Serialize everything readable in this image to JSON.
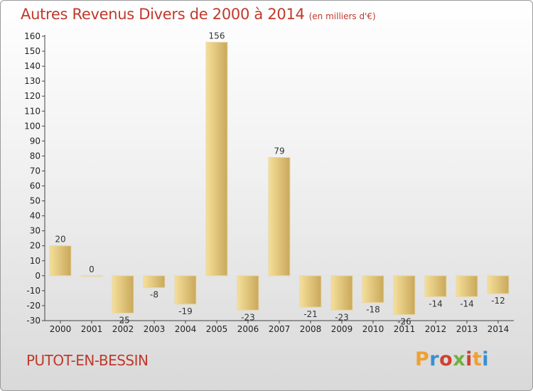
{
  "header": {
    "title": "Autres Revenus Divers de 2000 à 2014",
    "subtitle": "(en milliers d'€)"
  },
  "footer": {
    "city": "PUTOT-EN-BESSIN",
    "logo": {
      "letters": [
        "P",
        "r",
        "o",
        "x",
        "i",
        "t",
        "i"
      ],
      "colors": [
        "#f0a030",
        "#3a8fd0",
        "#d04030",
        "#70b040",
        "#d04030",
        "#f0a030",
        "#3a8fd0"
      ]
    }
  },
  "colors": {
    "title": "#c0392b",
    "bar_light": "#f5df9a",
    "bar_dark": "#c9a85a"
  },
  "chart_data": {
    "type": "bar",
    "title": "Autres Revenus Divers de 2000 à 2014",
    "subtitle": "(en milliers d'€)",
    "categories": [
      "2000",
      "2001",
      "2002",
      "2003",
      "2004",
      "2005",
      "2006",
      "2007",
      "2008",
      "2009",
      "2010",
      "2011",
      "2012",
      "2013",
      "2014"
    ],
    "values": [
      20,
      0,
      -25,
      -8,
      -19,
      156,
      -23,
      79,
      -21,
      -23,
      -18,
      -26,
      -14,
      -14,
      -12
    ],
    "ylim": [
      -30,
      160
    ],
    "yticks": [
      -30,
      -20,
      -10,
      0,
      10,
      20,
      30,
      40,
      50,
      60,
      70,
      80,
      90,
      100,
      110,
      120,
      130,
      140,
      150,
      160
    ],
    "grid": false,
    "legend": "none"
  }
}
